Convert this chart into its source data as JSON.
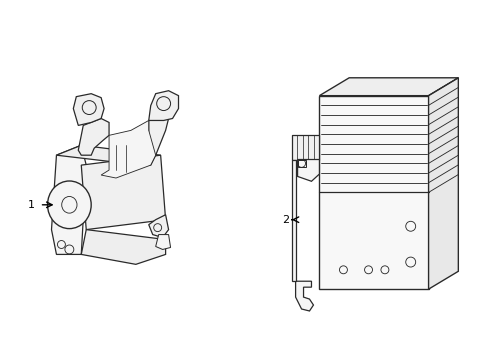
{
  "background_color": "#ffffff",
  "line_color": "#2a2a2a",
  "line_width": 0.9,
  "fig_width": 4.89,
  "fig_height": 3.6,
  "dpi": 100,
  "label1_text": "1",
  "label2_text": "2",
  "arrow_color": "#000000"
}
